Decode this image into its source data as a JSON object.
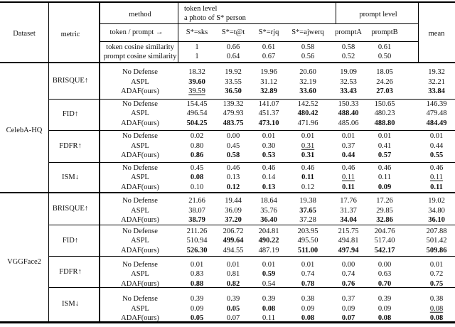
{
  "header": {
    "dataset": "Dataset",
    "metric": "metric",
    "method": "method",
    "token_level_title": "token level",
    "token_level_subtitle": "a photo of S* person",
    "prompt_level": "prompt level",
    "token_prompt_arrow": "token / prompt →",
    "token_columns": [
      "S*=sks",
      "S*=t@t",
      "S*=rjq",
      "S*=ajwerq"
    ],
    "prompt_columns": [
      "promptA",
      "promptB"
    ],
    "mean": "mean",
    "similarity_rows": [
      {
        "label": "token cosine similarity",
        "values": [
          "1",
          "0.66",
          "0.61",
          "0.58",
          "0.58",
          "0.61"
        ]
      },
      {
        "label": "prompt cosine similarity",
        "values": [
          "1",
          "0.64",
          "0.67",
          "0.56",
          "0.52",
          "0.50"
        ]
      }
    ]
  },
  "body": {
    "datasets": [
      {
        "name": "CelebA-HQ",
        "metrics": [
          {
            "name": "BRISQUE↑",
            "rows": [
              {
                "method": "No Defense",
                "values": [
                  "18.32",
                  "19.92",
                  "19.96",
                  "20.60",
                  "19.09",
                  "18.05",
                  "19.32"
                ],
                "styles": [
                  "",
                  "",
                  "",
                  "",
                  "",
                  "",
                  ""
                ]
              },
              {
                "method": "ASPL",
                "values": [
                  "39.60",
                  "33.55",
                  "31.12",
                  "32.19",
                  "32.53",
                  "24.26",
                  "32.21"
                ],
                "styles": [
                  "b",
                  "",
                  "",
                  "",
                  "",
                  "",
                  ""
                ]
              },
              {
                "method": "ADAF(ours)",
                "values": [
                  "39.59",
                  "36.50",
                  "32.89",
                  "33.60",
                  "33.43",
                  "27.03",
                  "33.84"
                ],
                "styles": [
                  "u",
                  "b",
                  "b",
                  "b",
                  "b",
                  "b",
                  "b"
                ]
              }
            ]
          },
          {
            "name": "FID↑",
            "rows": [
              {
                "method": "No Defense",
                "values": [
                  "154.45",
                  "139.32",
                  "141.07",
                  "142.52",
                  "150.33",
                  "150.65",
                  "146.39"
                ],
                "styles": [
                  "",
                  "",
                  "",
                  "",
                  "",
                  "",
                  ""
                ]
              },
              {
                "method": "ASPL",
                "values": [
                  "496.54",
                  "479.93",
                  "451.37",
                  "480.42",
                  "488.40",
                  "480.23",
                  "479.48"
                ],
                "styles": [
                  "",
                  "",
                  "",
                  "b",
                  "b",
                  "",
                  ""
                ]
              },
              {
                "method": "ADAF(ours)",
                "values": [
                  "504.25",
                  "483.75",
                  "473.10",
                  "471.96",
                  "485.06",
                  "488.80",
                  "484.49"
                ],
                "styles": [
                  "b",
                  "b",
                  "b",
                  "",
                  "",
                  "b",
                  "b"
                ]
              }
            ]
          },
          {
            "name": "FDFR↑",
            "rows": [
              {
                "method": "No Defense",
                "values": [
                  "0.02",
                  "0.00",
                  "0.01",
                  "0.01",
                  "0.01",
                  "0.01",
                  "0.01"
                ],
                "styles": [
                  "",
                  "",
                  "",
                  "",
                  "",
                  "",
                  ""
                ]
              },
              {
                "method": "ASPL",
                "values": [
                  "0.80",
                  "0.45",
                  "0.30",
                  "0.31",
                  "0.37",
                  "0.41",
                  "0.44"
                ],
                "styles": [
                  "",
                  "",
                  "",
                  "u",
                  "",
                  "",
                  ""
                ]
              },
              {
                "method": "ADAF(ours)",
                "values": [
                  "0.86",
                  "0.58",
                  "0.53",
                  "0.31",
                  "0.44",
                  "0.57",
                  "0.55"
                ],
                "styles": [
                  "b",
                  "b",
                  "b",
                  "b",
                  "b",
                  "b",
                  "b"
                ]
              }
            ]
          },
          {
            "name": "ISM↓",
            "rows": [
              {
                "method": "No Defense",
                "values": [
                  "0.45",
                  "0.46",
                  "0.46",
                  "0.46",
                  "0.46",
                  "0.46",
                  "0.46"
                ],
                "styles": [
                  "",
                  "",
                  "",
                  "",
                  "",
                  "",
                  ""
                ]
              },
              {
                "method": "ASPL",
                "values": [
                  "0.08",
                  "0.13",
                  "0.14",
                  "0.11",
                  "0.11",
                  "0.11",
                  "0.11"
                ],
                "styles": [
                  "b",
                  "",
                  "",
                  "b",
                  "u",
                  "",
                  "u"
                ]
              },
              {
                "method": "ADAF(ours)",
                "values": [
                  "0.10",
                  "0.12",
                  "0.13",
                  "0.12",
                  "0.11",
                  "0.09",
                  "0.11"
                ],
                "styles": [
                  "",
                  "b",
                  "b",
                  "",
                  "b",
                  "b",
                  "b"
                ]
              }
            ]
          }
        ]
      },
      {
        "name": "VGGFace2",
        "metrics": [
          {
            "name": "BRISQUE↑",
            "rows": [
              {
                "method": "No Defense",
                "values": [
                  "21.66",
                  "19.44",
                  "18.64",
                  "19.38",
                  "17.76",
                  "17.26",
                  "19.02"
                ],
                "styles": [
                  "",
                  "",
                  "",
                  "",
                  "",
                  "",
                  ""
                ]
              },
              {
                "method": "ASPL",
                "values": [
                  "38.07",
                  "36.09",
                  "35.76",
                  "37.65",
                  "31.37",
                  "29.85",
                  "34.80"
                ],
                "styles": [
                  "",
                  "",
                  "",
                  "b",
                  "",
                  "",
                  ""
                ]
              },
              {
                "method": "ADAF(ours)",
                "values": [
                  "38.79",
                  "37.20",
                  "36.40",
                  "37.28",
                  "34.04",
                  "32.86",
                  "36.10"
                ],
                "styles": [
                  "b",
                  "b",
                  "b",
                  "",
                  "b",
                  "b",
                  "b"
                ]
              }
            ]
          },
          {
            "name": "FID↑",
            "rows": [
              {
                "method": "No Defense",
                "values": [
                  "211.26",
                  "206.72",
                  "204.81",
                  "203.95",
                  "215.75",
                  "204.76",
                  "207.88"
                ],
                "styles": [
                  "",
                  "",
                  "",
                  "",
                  "",
                  "",
                  ""
                ]
              },
              {
                "method": "ASPL",
                "values": [
                  "510.94",
                  "499.64",
                  "490.22",
                  "495.50",
                  "494.81",
                  "517.40",
                  "501.42"
                ],
                "styles": [
                  "",
                  "b",
                  "b",
                  "",
                  "",
                  "",
                  ""
                ]
              },
              {
                "method": "ADAF(ours)",
                "values": [
                  "526.30",
                  "494.55",
                  "487.19",
                  "511.00",
                  "497.94",
                  "542.17",
                  "509.86"
                ],
                "styles": [
                  "b",
                  "",
                  "",
                  "b",
                  "b",
                  "b",
                  "b"
                ]
              }
            ]
          },
          {
            "name": "FDFR↑",
            "rows": [
              {
                "method": "No Defense",
                "values": [
                  "0.01",
                  "0.01",
                  "0.01",
                  "0.01",
                  "0.00",
                  "0.00",
                  "0.01"
                ],
                "styles": [
                  "",
                  "",
                  "",
                  "",
                  "",
                  "",
                  ""
                ]
              },
              {
                "method": "ASPL",
                "values": [
                  "0.83",
                  "0.81",
                  "0.59",
                  "0.74",
                  "0.74",
                  "0.63",
                  "0.72"
                ],
                "styles": [
                  "",
                  "",
                  "b",
                  "",
                  "",
                  "",
                  ""
                ]
              },
              {
                "method": "ADAF(ours)",
                "values": [
                  "0.88",
                  "0.82",
                  "0.54",
                  "0.78",
                  "0.76",
                  "0.70",
                  "0.75"
                ],
                "styles": [
                  "b",
                  "b",
                  "",
                  "b",
                  "b",
                  "b",
                  "b"
                ]
              }
            ]
          },
          {
            "name": "ISM↓",
            "rows": [
              {
                "method": "No Defense",
                "values": [
                  "0.39",
                  "0.39",
                  "0.39",
                  "0.38",
                  "0.37",
                  "0.39",
                  "0.38"
                ],
                "styles": [
                  "",
                  "",
                  "",
                  "",
                  "",
                  "",
                  ""
                ]
              },
              {
                "method": "ASPL",
                "values": [
                  "0.09",
                  "0.05",
                  "0.08",
                  "0.09",
                  "0.09",
                  "0.09",
                  "0.08"
                ],
                "styles": [
                  "",
                  "b",
                  "b",
                  "",
                  "",
                  "",
                  "u"
                ]
              },
              {
                "method": "ADAF(ours)",
                "values": [
                  "0.05",
                  "0.07",
                  "0.11",
                  "0.08",
                  "0.07",
                  "0.08",
                  "0.08"
                ],
                "styles": [
                  "b",
                  "",
                  "",
                  "b",
                  "b",
                  "b",
                  "b"
                ]
              }
            ]
          }
        ]
      }
    ]
  }
}
